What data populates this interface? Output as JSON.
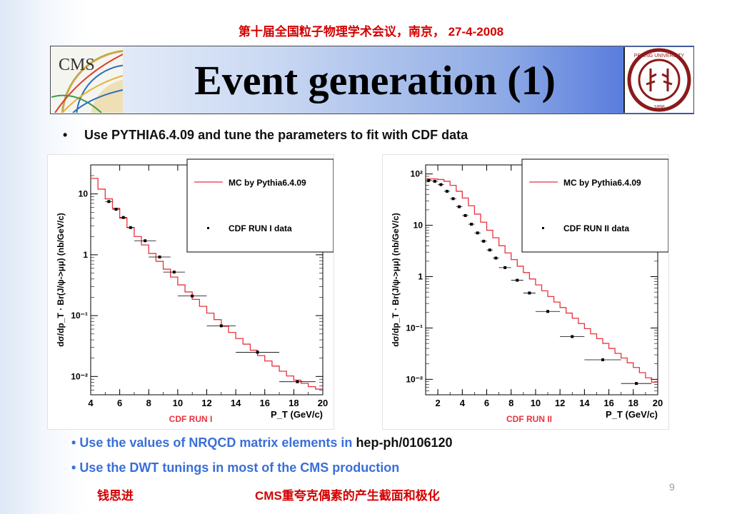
{
  "header": {
    "conference": "第十届全国粒子物理学术会议，南京， 27-4-2008",
    "title": "Event generation (1)",
    "cms_logo_text": "CMS",
    "pku_logo_text": "PEKING UNIVERSITY 1898"
  },
  "intro_bullet": "Use PYTHIA6.4.09 and tune the parameters to fit with CDF data",
  "bottom_bullets": [
    {
      "text": "Use the values of NRQCD matrix elements in ",
      "ref": "hep-ph/0106120"
    },
    {
      "text": "Use the DWT tunings in most of the CMS production"
    }
  ],
  "footer": {
    "author": "钱思进",
    "topic": "CMS重夸克偶素的产生截面和极化",
    "page": "9"
  },
  "colors": {
    "mc_line": "#e8333d",
    "label_red": "#e8333d",
    "title_accent": "#3b63d8"
  },
  "chart_data": [
    {
      "type": "line",
      "caption": "CDF RUN I",
      "xlabel": "P_T (GeV/c)",
      "ylabel": "dσ/dp_T · Br(J/ψ->μμ) (nb/GeV/c)",
      "xlim": [
        4,
        20
      ],
      "ylim": [
        0.005,
        30
      ],
      "yscale": "log",
      "xticks": [
        4,
        6,
        8,
        10,
        12,
        14,
        16,
        18,
        20
      ],
      "yticks": [
        {
          "v": 10,
          "label": "10"
        },
        {
          "v": 1,
          "label": "1"
        },
        {
          "v": 0.1,
          "label": "10⁻¹"
        },
        {
          "v": 0.01,
          "label": "10⁻²"
        }
      ],
      "legend": {
        "position": "top-right",
        "entries": [
          "MC by Pythia6.4.09",
          "CDF RUN I data"
        ]
      },
      "series": [
        {
          "name": "MC by Pythia6.4.09",
          "style": "histogram",
          "x": [
            4.0,
            4.5,
            5.0,
            5.5,
            6.0,
            6.5,
            7.0,
            7.5,
            8.0,
            8.5,
            9.0,
            9.5,
            10.0,
            10.5,
            11.0,
            11.5,
            12.0,
            12.5,
            13.0,
            13.5,
            14.0,
            14.5,
            15.0,
            15.5,
            16.0,
            16.5,
            17.0,
            17.5,
            18.0,
            18.5,
            19.0,
            19.5
          ],
          "values": [
            18,
            12,
            8.3,
            5.8,
            4.0,
            2.8,
            2.0,
            1.45,
            1.05,
            0.78,
            0.58,
            0.43,
            0.32,
            0.245,
            0.185,
            0.142,
            0.11,
            0.086,
            0.067,
            0.053,
            0.042,
            0.034,
            0.027,
            0.022,
            0.018,
            0.0148,
            0.0122,
            0.0102,
            0.0087,
            0.0077,
            0.0068,
            0.0062
          ]
        },
        {
          "name": "CDF RUN I data",
          "style": "points",
          "x": [
            5.25,
            5.75,
            6.25,
            6.75,
            7.75,
            8.75,
            9.75,
            11.0,
            13.0,
            15.5,
            18.25
          ],
          "xerr": [
            0.25,
            0.25,
            0.25,
            0.25,
            0.75,
            0.75,
            0.75,
            1.0,
            1.0,
            1.5,
            1.25
          ],
          "values": [
            7.5,
            5.6,
            4.1,
            2.8,
            1.7,
            0.92,
            0.52,
            0.21,
            0.068,
            0.025,
            0.0082
          ]
        }
      ]
    },
    {
      "type": "line",
      "caption": "CDF RUN II",
      "xlabel": "P_T (GeV/c)",
      "ylabel": "dσ/dp_T · Br(J/ψ->μμ) (nb/GeV/c)",
      "xlim": [
        1,
        20
      ],
      "ylim": [
        0.005,
        150
      ],
      "yscale": "log",
      "xticks": [
        2,
        4,
        6,
        8,
        10,
        12,
        14,
        16,
        18,
        20
      ],
      "yticks": [
        {
          "v": 100,
          "label": "10²"
        },
        {
          "v": 10,
          "label": "10"
        },
        {
          "v": 1,
          "label": "1"
        },
        {
          "v": 0.1,
          "label": "10⁻¹"
        },
        {
          "v": 0.01,
          "label": "10⁻²"
        }
      ],
      "legend": {
        "position": "top-right",
        "entries": [
          "MC by Pythia6.4.09",
          "CDF RUN II data"
        ]
      },
      "series": [
        {
          "name": "MC by Pythia6.4.09",
          "style": "histogram",
          "x": [
            1.0,
            1.5,
            2.0,
            2.5,
            3.0,
            3.5,
            4.0,
            4.5,
            5.0,
            5.5,
            6.0,
            6.5,
            7.0,
            7.5,
            8.0,
            8.5,
            9.0,
            9.5,
            10.0,
            10.5,
            11.0,
            11.5,
            12.0,
            12.5,
            13.0,
            13.5,
            14.0,
            14.5,
            15.0,
            15.5,
            16.0,
            16.5,
            17.0,
            17.5,
            18.0,
            18.5,
            19.0,
            19.5
          ],
          "values": [
            80,
            80,
            78,
            72,
            60,
            46,
            34,
            24,
            16.5,
            11.5,
            8.0,
            5.7,
            4.0,
            2.9,
            2.15,
            1.6,
            1.2,
            0.9,
            0.69,
            0.53,
            0.41,
            0.32,
            0.25,
            0.195,
            0.155,
            0.122,
            0.097,
            0.077,
            0.062,
            0.05,
            0.04,
            0.032,
            0.026,
            0.021,
            0.017,
            0.0135,
            0.0107,
            0.0088
          ]
        },
        {
          "name": "CDF RUN II data",
          "style": "points",
          "x": [
            1.25,
            1.75,
            2.25,
            2.75,
            3.25,
            3.75,
            4.25,
            4.75,
            5.25,
            5.75,
            6.25,
            6.75,
            7.5,
            8.5,
            9.5,
            11.0,
            13.0,
            15.5,
            18.25
          ],
          "xerr": [
            0.25,
            0.25,
            0.25,
            0.25,
            0.25,
            0.25,
            0.25,
            0.25,
            0.25,
            0.25,
            0.25,
            0.25,
            0.5,
            0.5,
            0.5,
            1.0,
            1.0,
            1.5,
            1.25
          ],
          "values": [
            75,
            72,
            62,
            46,
            33,
            23,
            15.5,
            10.5,
            7.1,
            4.9,
            3.3,
            2.3,
            1.5,
            0.85,
            0.48,
            0.21,
            0.068,
            0.024,
            0.0083
          ]
        }
      ]
    }
  ]
}
